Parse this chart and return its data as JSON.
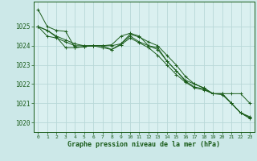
{
  "background_color": "#cce8e8",
  "plot_bg_color": "#daf0f0",
  "grid_color": "#b8d8d8",
  "line_color": "#1a5c1a",
  "xlabel": "Graphe pression niveau de la mer (hPa)",
  "xlabel_color": "#1a5c1a",
  "tick_color": "#1a5c1a",
  "ylim": [
    1019.5,
    1026.3
  ],
  "xlim": [
    -0.5,
    23.5
  ],
  "yticks": [
    1020,
    1021,
    1022,
    1023,
    1024,
    1025
  ],
  "xticks": [
    0,
    1,
    2,
    3,
    4,
    5,
    6,
    7,
    8,
    9,
    10,
    11,
    12,
    13,
    14,
    15,
    16,
    17,
    18,
    19,
    20,
    21,
    22,
    23
  ],
  "series": [
    [
      1025.9,
      1025.0,
      1024.8,
      1024.75,
      1023.9,
      1023.95,
      1024.0,
      1024.0,
      1024.05,
      1024.5,
      1024.65,
      1024.5,
      1024.0,
      1023.9,
      1023.2,
      1022.7,
      1022.15,
      1021.85,
      1021.75,
      1021.5,
      1021.45,
      1021.0,
      1020.5,
      1020.25
    ],
    [
      1025.0,
      1024.8,
      1024.45,
      1023.9,
      1023.9,
      1023.95,
      1024.0,
      1023.9,
      1023.8,
      1024.05,
      1024.4,
      1024.15,
      1023.9,
      1023.5,
      1023.0,
      1022.5,
      1022.1,
      1021.8,
      1021.7,
      1021.5,
      1021.5,
      1021.5,
      1021.5,
      1021.0
    ],
    [
      1025.0,
      1024.8,
      1024.5,
      1024.3,
      1024.1,
      1024.0,
      1024.0,
      1024.0,
      1023.8,
      1024.1,
      1024.6,
      1024.45,
      1024.2,
      1024.0,
      1023.5,
      1023.0,
      1022.4,
      1022.0,
      1021.8,
      1021.5,
      1021.5,
      1021.0,
      1020.5,
      1020.2
    ],
    [
      1025.0,
      1024.5,
      1024.4,
      1024.2,
      1024.0,
      1024.0,
      1024.0,
      1024.0,
      1024.0,
      1024.1,
      1024.5,
      1024.2,
      1024.0,
      1023.8,
      1023.2,
      1022.7,
      1022.2,
      1022.0,
      1021.8,
      1021.5,
      1021.5,
      1021.0,
      1020.5,
      1020.3
    ]
  ]
}
